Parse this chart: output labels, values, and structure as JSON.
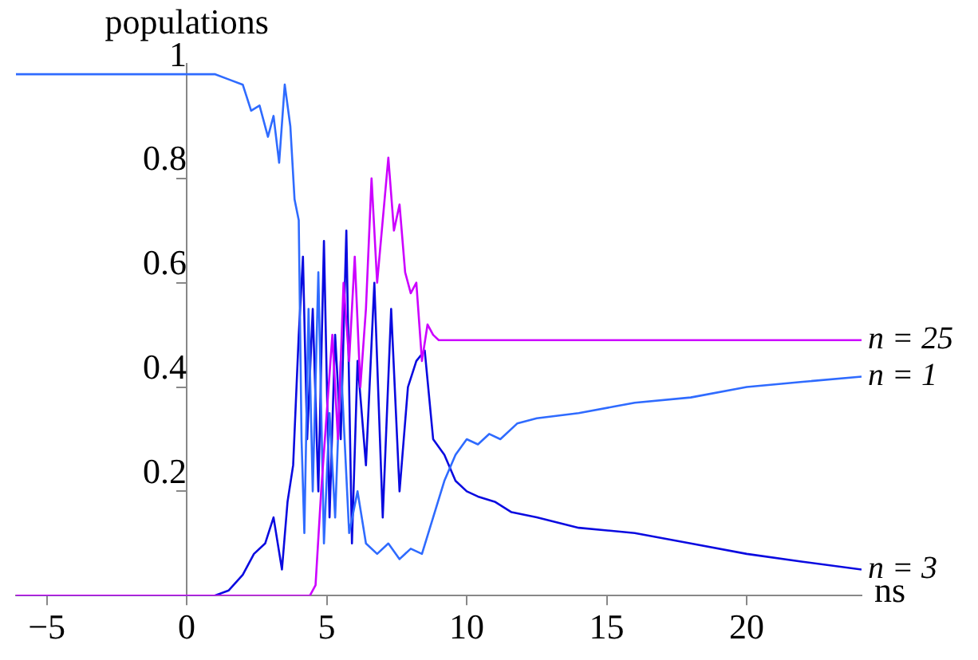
{
  "chart_data": {
    "type": "line",
    "xlabel": "ns",
    "ylabel": "populations",
    "xlim": [
      -6.1,
      24.1
    ],
    "ylim": [
      0,
      1.02
    ],
    "xticks": [
      -5,
      0,
      5,
      10,
      15,
      20
    ],
    "yticks": [
      0.2,
      0.4,
      0.6,
      0.8,
      1
    ],
    "grid": false,
    "legend": false,
    "marker": "none",
    "line_style": "solid",
    "series": [
      {
        "name": "n = 25",
        "color": "#cc00ff",
        "x": [
          -6.1,
          0,
          4.4,
          4.6,
          4.8,
          5.0,
          5.2,
          5.4,
          5.6,
          5.8,
          6.0,
          6.2,
          6.4,
          6.6,
          6.8,
          7.0,
          7.2,
          7.4,
          7.6,
          7.8,
          8.0,
          8.2,
          8.4,
          8.6,
          8.8,
          9.0,
          9.4,
          10,
          12,
          24.1
        ],
        "values": [
          0,
          0,
          0,
          0.02,
          0.2,
          0.35,
          0.5,
          0.3,
          0.6,
          0.45,
          0.65,
          0.4,
          0.55,
          0.8,
          0.6,
          0.72,
          0.84,
          0.7,
          0.75,
          0.62,
          0.58,
          0.6,
          0.45,
          0.52,
          0.5,
          0.49,
          0.49,
          0.49,
          0.49,
          0.49
        ]
      },
      {
        "name": "n = 1",
        "color": "#2f6bff",
        "x": [
          -6.1,
          0,
          1,
          1.5,
          2,
          2.3,
          2.6,
          2.9,
          3.1,
          3.3,
          3.5,
          3.7,
          3.85,
          4.0,
          4.1,
          4.2,
          4.35,
          4.5,
          4.7,
          4.9,
          5.1,
          5.3,
          5.5,
          5.8,
          6.1,
          6.4,
          6.8,
          7.2,
          7.6,
          8.0,
          8.4,
          8.8,
          9.2,
          9.6,
          10,
          10.4,
          10.8,
          11.2,
          11.8,
          12.5,
          14,
          16,
          18,
          20,
          22,
          24.1
        ],
        "values": [
          1,
          1,
          1,
          0.99,
          0.98,
          0.93,
          0.94,
          0.88,
          0.92,
          0.83,
          0.98,
          0.9,
          0.76,
          0.72,
          0.3,
          0.12,
          0.55,
          0.2,
          0.62,
          0.1,
          0.35,
          0.15,
          0.45,
          0.12,
          0.2,
          0.1,
          0.08,
          0.1,
          0.07,
          0.09,
          0.08,
          0.15,
          0.22,
          0.27,
          0.3,
          0.29,
          0.31,
          0.3,
          0.33,
          0.34,
          0.35,
          0.37,
          0.38,
          0.4,
          0.41,
          0.42
        ]
      },
      {
        "name": "n = 3",
        "color": "#0a0ae0",
        "x": [
          -6.1,
          0,
          1,
          1.5,
          2,
          2.4,
          2.8,
          3.1,
          3.4,
          3.6,
          3.8,
          4.0,
          4.15,
          4.3,
          4.5,
          4.7,
          4.9,
          5.1,
          5.3,
          5.5,
          5.7,
          5.9,
          6.1,
          6.4,
          6.7,
          7.0,
          7.3,
          7.6,
          7.9,
          8.2,
          8.5,
          8.8,
          9.2,
          9.6,
          10,
          10.4,
          11,
          11.6,
          12.5,
          14,
          16,
          18,
          20,
          22,
          24.1
        ],
        "values": [
          0,
          0,
          0,
          0.01,
          0.04,
          0.08,
          0.1,
          0.15,
          0.05,
          0.18,
          0.25,
          0.5,
          0.65,
          0.3,
          0.55,
          0.2,
          0.68,
          0.15,
          0.5,
          0.3,
          0.7,
          0.1,
          0.45,
          0.25,
          0.6,
          0.15,
          0.55,
          0.2,
          0.4,
          0.45,
          0.47,
          0.3,
          0.27,
          0.22,
          0.2,
          0.19,
          0.18,
          0.16,
          0.15,
          0.13,
          0.12,
          0.1,
          0.08,
          0.065,
          0.05
        ]
      }
    ]
  }
}
